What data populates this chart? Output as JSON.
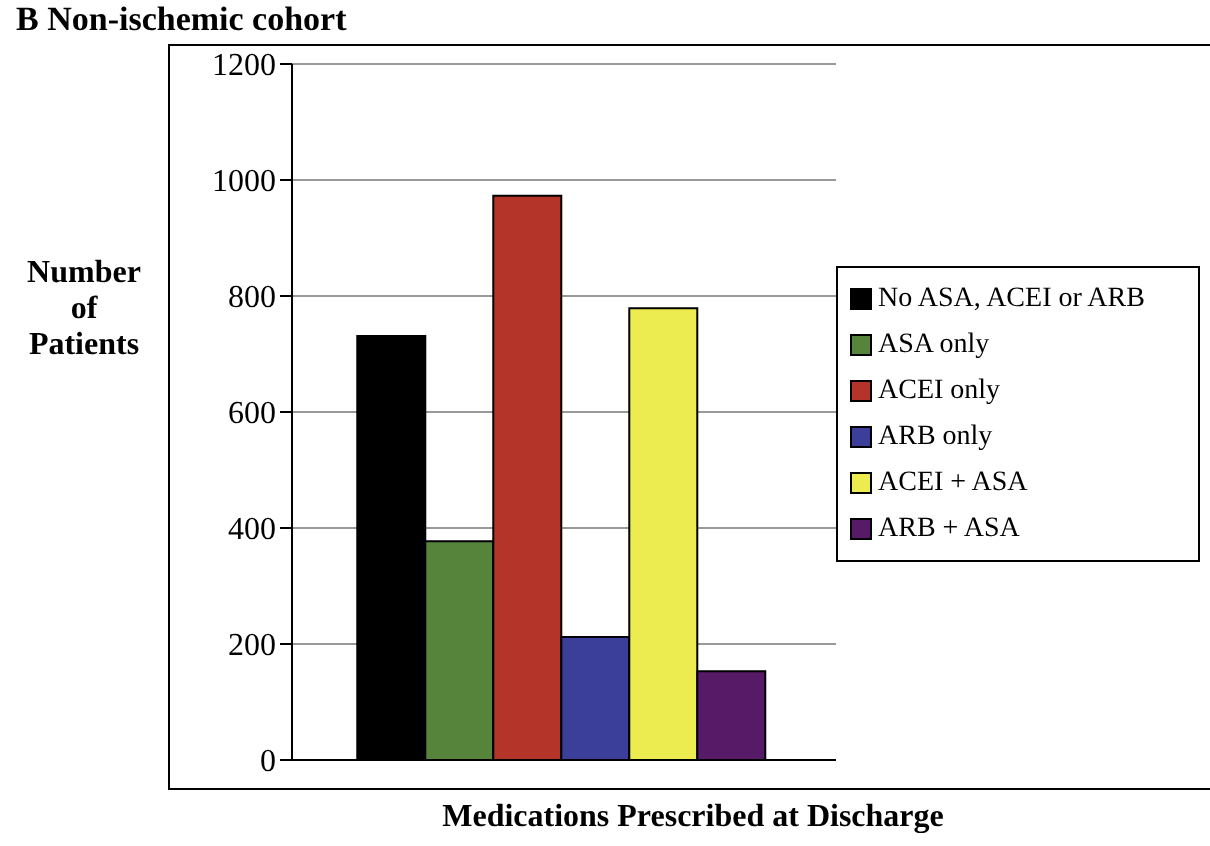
{
  "chart_data": {
    "type": "bar",
    "title": "B Non-ischemic cohort",
    "xlabel": "Medications Prescribed at Discharge",
    "ylabel": "Number of Patients",
    "categories": [
      null
    ],
    "series": [
      {
        "name": "No ASA, ACEI or ARB",
        "color": "#000000",
        "values": [
          731
        ]
      },
      {
        "name": "ASA only",
        "color": "#55843a",
        "values": [
          377
        ]
      },
      {
        "name": "ACEI only",
        "color": "#b5342a",
        "values": [
          973
        ]
      },
      {
        "name": "ARB only",
        "color": "#3b3f9a",
        "values": [
          212
        ]
      },
      {
        "name": "ACEI + ASA",
        "color": "#ecec50",
        "values": [
          779
        ]
      },
      {
        "name": "ARB + ASA",
        "color": "#561a66",
        "values": [
          153
        ]
      }
    ],
    "ylim": [
      0,
      1200
    ],
    "yticks": [
      0,
      200,
      400,
      600,
      800,
      1000,
      1200
    ],
    "grid": "y",
    "legend": "right"
  }
}
